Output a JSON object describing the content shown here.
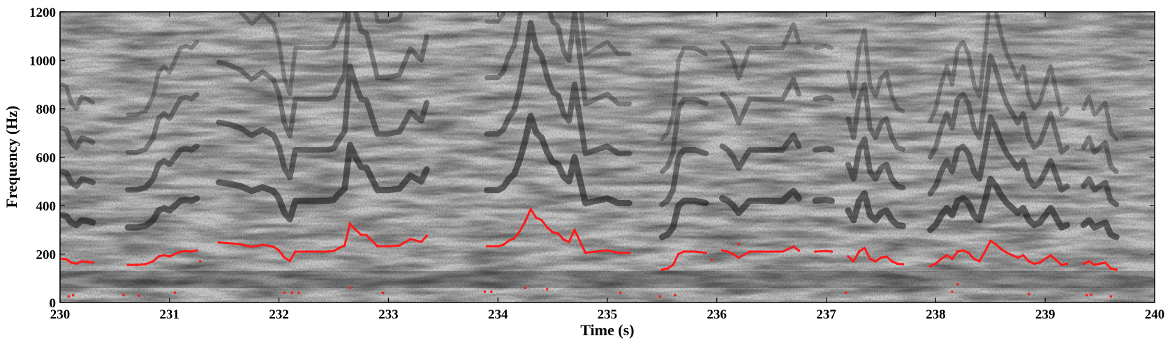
{
  "chart_data": {
    "type": "heatmap",
    "subtype": "spectrogram",
    "title": "",
    "xlabel": "Time (s)",
    "ylabel": "Frequency (Hz)",
    "xlim": [
      230,
      240
    ],
    "ylim": [
      0,
      1200
    ],
    "xticks": [
      230,
      231,
      232,
      233,
      234,
      235,
      236,
      237,
      238,
      239,
      240
    ],
    "yticks": [
      0,
      200,
      400,
      600,
      800,
      1000,
      1200
    ],
    "colormap": "gray-inverted",
    "grid": false,
    "legend": "none",
    "series": [
      {
        "style": "red-dots",
        "color": "#ff1a1a",
        "description_points": [
          [
            230.02,
            180
          ],
          [
            230.06,
            178
          ],
          [
            230.1,
            165
          ],
          [
            230.15,
            160
          ],
          [
            230.2,
            170
          ],
          [
            230.25,
            168
          ],
          [
            230.3,
            165
          ],
          [
            230.62,
            155
          ],
          [
            230.7,
            155
          ],
          [
            230.78,
            158
          ],
          [
            230.85,
            170
          ],
          [
            230.9,
            190
          ],
          [
            230.95,
            195
          ],
          [
            231.0,
            190
          ],
          [
            231.1,
            210
          ],
          [
            231.15,
            212
          ],
          [
            231.2,
            210
          ],
          [
            231.25,
            215
          ],
          [
            231.45,
            248
          ],
          [
            231.55,
            245
          ],
          [
            231.65,
            240
          ],
          [
            231.75,
            230
          ],
          [
            231.85,
            238
          ],
          [
            231.95,
            230
          ],
          [
            232.0,
            215
          ],
          [
            232.05,
            185
          ],
          [
            232.1,
            172
          ],
          [
            232.15,
            210
          ],
          [
            232.25,
            210
          ],
          [
            232.35,
            210
          ],
          [
            232.45,
            210
          ],
          [
            232.5,
            212
          ],
          [
            232.55,
            225
          ],
          [
            232.6,
            235
          ],
          [
            232.65,
            325
          ],
          [
            232.7,
            300
          ],
          [
            232.75,
            280
          ],
          [
            232.8,
            278
          ],
          [
            232.9,
            232
          ],
          [
            233.0,
            232
          ],
          [
            233.1,
            235
          ],
          [
            233.2,
            262
          ],
          [
            233.3,
            250
          ],
          [
            233.35,
            275
          ],
          [
            233.9,
            232
          ],
          [
            234.0,
            232
          ],
          [
            234.05,
            238
          ],
          [
            234.1,
            255
          ],
          [
            234.15,
            265
          ],
          [
            234.2,
            295
          ],
          [
            234.25,
            335
          ],
          [
            234.3,
            385
          ],
          [
            234.35,
            350
          ],
          [
            234.4,
            340
          ],
          [
            234.45,
            310
          ],
          [
            234.5,
            290
          ],
          [
            234.55,
            285
          ],
          [
            234.6,
            260
          ],
          [
            234.65,
            250
          ],
          [
            234.7,
            300
          ],
          [
            234.8,
            205
          ],
          [
            234.9,
            210
          ],
          [
            235.0,
            215
          ],
          [
            235.1,
            205
          ],
          [
            235.2,
            205
          ],
          [
            235.5,
            135
          ],
          [
            235.55,
            140
          ],
          [
            235.6,
            155
          ],
          [
            235.65,
            200
          ],
          [
            235.7,
            210
          ],
          [
            235.8,
            210
          ],
          [
            235.9,
            205
          ],
          [
            236.05,
            215
          ],
          [
            236.1,
            210
          ],
          [
            236.15,
            200
          ],
          [
            236.2,
            185
          ],
          [
            236.3,
            210
          ],
          [
            236.4,
            210
          ],
          [
            236.5,
            210
          ],
          [
            236.6,
            210
          ],
          [
            236.7,
            230
          ],
          [
            236.75,
            215
          ],
          [
            236.9,
            210
          ],
          [
            237.0,
            212
          ],
          [
            237.05,
            210
          ],
          [
            237.2,
            190
          ],
          [
            237.25,
            170
          ],
          [
            237.3,
            210
          ],
          [
            237.35,
            225
          ],
          [
            237.4,
            180
          ],
          [
            237.45,
            170
          ],
          [
            237.5,
            185
          ],
          [
            237.55,
            190
          ],
          [
            237.6,
            170
          ],
          [
            237.65,
            160
          ],
          [
            237.7,
            158
          ],
          [
            237.95,
            150
          ],
          [
            238.0,
            160
          ],
          [
            238.05,
            180
          ],
          [
            238.1,
            195
          ],
          [
            238.15,
            180
          ],
          [
            238.2,
            210
          ],
          [
            238.25,
            215
          ],
          [
            238.3,
            205
          ],
          [
            238.35,
            180
          ],
          [
            238.4,
            170
          ],
          [
            238.45,
            210
          ],
          [
            238.5,
            255
          ],
          [
            238.55,
            240
          ],
          [
            238.6,
            220
          ],
          [
            238.65,
            205
          ],
          [
            238.7,
            195
          ],
          [
            238.75,
            185
          ],
          [
            238.8,
            195
          ],
          [
            238.85,
            170
          ],
          [
            238.9,
            160
          ],
          [
            238.95,
            165
          ],
          [
            239.05,
            195
          ],
          [
            239.1,
            175
          ],
          [
            239.15,
            155
          ],
          [
            239.2,
            160
          ],
          [
            239.35,
            160
          ],
          [
            239.4,
            170
          ],
          [
            239.45,
            155
          ],
          [
            239.5,
            160
          ],
          [
            239.55,
            165
          ],
          [
            239.6,
            140
          ],
          [
            239.65,
            135
          ]
        ]
      }
    ],
    "outlier_points": [
      [
        230.08,
        25
      ],
      [
        230.12,
        30
      ],
      [
        230.58,
        30
      ],
      [
        230.72,
        28
      ],
      [
        231.05,
        40
      ],
      [
        231.28,
        170
      ],
      [
        232.05,
        40
      ],
      [
        232.12,
        40
      ],
      [
        232.18,
        40
      ],
      [
        232.65,
        60
      ],
      [
        232.95,
        40
      ],
      [
        233.88,
        45
      ],
      [
        233.94,
        45
      ],
      [
        234.25,
        60
      ],
      [
        234.45,
        55
      ],
      [
        235.12,
        40
      ],
      [
        235.48,
        25
      ],
      [
        235.62,
        30
      ],
      [
        235.95,
        175
      ],
      [
        236.2,
        240
      ],
      [
        237.18,
        40
      ],
      [
        238.15,
        45
      ],
      [
        238.2,
        75
      ],
      [
        238.85,
        35
      ],
      [
        239.38,
        30
      ],
      [
        239.42,
        32
      ],
      [
        239.6,
        25
      ]
    ]
  }
}
